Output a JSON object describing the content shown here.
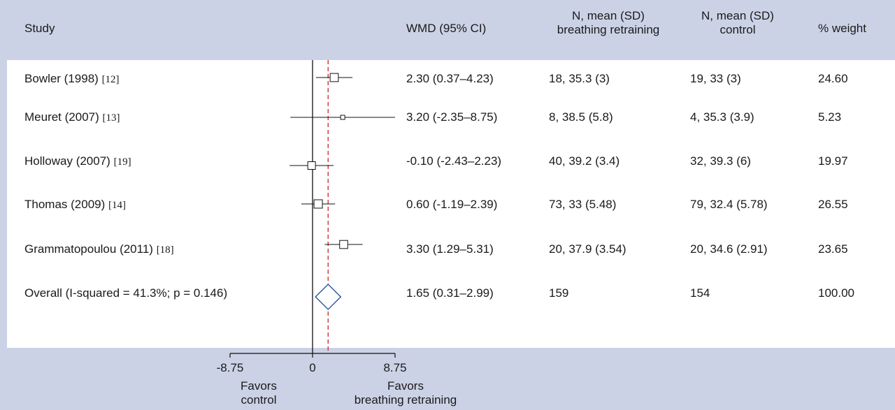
{
  "header": {
    "study": "Study",
    "wmd": "WMD (95% CI)",
    "n_treat_l1": "N, mean (SD)",
    "n_treat_l2": "breathing retraining",
    "n_ctrl_l1": "N, mean (SD)",
    "n_ctrl_l2": "control",
    "weight": "% weight"
  },
  "rows": [
    {
      "study": "Bowler (1998)",
      "ref": "[12]",
      "wmd": "2.30 (0.37–4.23)",
      "treat": "18, 35.3 (3)",
      "ctrl": "19, 33 (3)",
      "weight": "24.60"
    },
    {
      "study": "Meuret (2007)",
      "ref": "[13]",
      "wmd": "3.20 (-2.35–8.75)",
      "treat": "8, 38.5 (5.8)",
      "ctrl": "4, 35.3 (3.9)",
      "weight": "5.23"
    },
    {
      "study": "Holloway (2007)",
      "ref": "[19]",
      "wmd": "-0.10 (-2.43–2.23)",
      "treat": "40, 39.2 (3.4)",
      "ctrl": "32, 39.3 (6)",
      "weight": "19.97"
    },
    {
      "study": "Thomas (2009)",
      "ref": "[14]",
      "wmd": "0.60 (-1.19–2.39)",
      "treat": "73, 33 (5.48)",
      "ctrl": "79, 32.4 (5.78)",
      "weight": "26.55"
    },
    {
      "study": "Grammatopoulou (2011)",
      "ref": "[18]",
      "wmd": "3.30 (1.29–5.31)",
      "treat": "20, 37.9 (3.54)",
      "ctrl": "20, 34.6 (2.91)",
      "weight": "23.65"
    }
  ],
  "overall": {
    "study": "Overall (I-squared = 41.3%; p = 0.146)",
    "wmd": "1.65 (0.31–2.99)",
    "treat": "159",
    "ctrl": "154",
    "weight": "100.00"
  },
  "axis": {
    "ticks": [
      "-8.75",
      "0",
      "8.75"
    ]
  },
  "favors": {
    "left_l1": "Favors",
    "left_l2": "control",
    "right_l1": "Favors",
    "right_l2": "breathing retraining"
  },
  "colors": {
    "overall_diamond": "#1f4e9c",
    "pooled_line": "#cc2222",
    "background": "#ccd2e6"
  },
  "chart_data": {
    "type": "forest",
    "xlim": [
      -8.75,
      8.75
    ],
    "ticks": [
      -8.75,
      0,
      8.75
    ],
    "null_value": 0,
    "pooled_estimate": 1.65,
    "studies": [
      {
        "name": "Bowler (1998)",
        "estimate": 2.3,
        "lower": 0.37,
        "upper": 4.23,
        "weight": 24.6
      },
      {
        "name": "Meuret (2007)",
        "estimate": 3.2,
        "lower": -2.35,
        "upper": 8.75,
        "weight": 5.23
      },
      {
        "name": "Holloway (2007)",
        "estimate": -0.1,
        "lower": -2.43,
        "upper": 2.23,
        "weight": 19.97
      },
      {
        "name": "Thomas (2009)",
        "estimate": 0.6,
        "lower": -1.19,
        "upper": 2.39,
        "weight": 26.55
      },
      {
        "name": "Grammatopoulou (2011)",
        "estimate": 3.3,
        "lower": 1.29,
        "upper": 5.31,
        "weight": 23.65
      }
    ],
    "overall": {
      "name": "Overall (I-squared = 41.3%; p = 0.146)",
      "estimate": 1.65,
      "lower": 0.31,
      "upper": 2.99,
      "weight": 100.0
    }
  }
}
